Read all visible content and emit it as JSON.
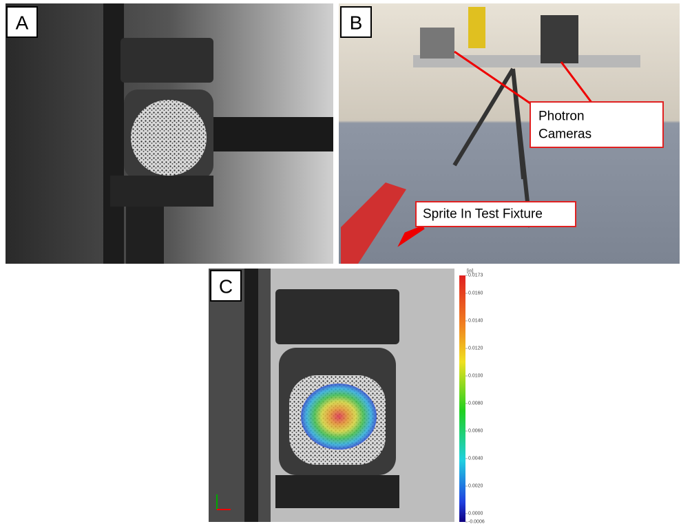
{
  "panels": [
    {
      "label": "A"
    },
    {
      "label": "B",
      "callouts": [
        {
          "lines": [
            "Photron",
            "Cameras"
          ]
        },
        {
          "lines": [
            "Sprite In Test Fixture"
          ]
        }
      ]
    },
    {
      "label": "C",
      "colorbar": {
        "unit": "[in]",
        "range": [
          -0.0006,
          0.0173
        ],
        "ticks": [
          {
            "value": 0.0173,
            "label": "0.0173"
          },
          {
            "value": 0.016,
            "label": "0.0160"
          },
          {
            "value": 0.014,
            "label": "0.0140"
          },
          {
            "value": 0.012,
            "label": "0.0120"
          },
          {
            "value": 0.01,
            "label": "0.0100"
          },
          {
            "value": 0.008,
            "label": "0.0080"
          },
          {
            "value": 0.006,
            "label": "0.0060"
          },
          {
            "value": 0.004,
            "label": "0.0040"
          },
          {
            "value": 0.002,
            "label": "0.0020"
          },
          {
            "value": 0,
            "label": "0.0000"
          },
          {
            "value": -0.0006,
            "label": "-0.0006"
          }
        ]
      }
    }
  ]
}
